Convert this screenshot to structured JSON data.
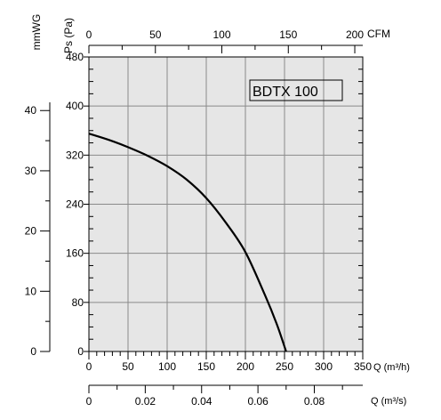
{
  "chart_data": {
    "type": "line",
    "title": "BDTX 100",
    "x_primary": {
      "label": "Q (m³/h)",
      "range": [
        0,
        350
      ],
      "ticks": [
        "0",
        "50",
        "100",
        "150",
        "200",
        "250",
        "300",
        "350"
      ]
    },
    "x_top": {
      "label": "CFM",
      "range": [
        0,
        206
      ],
      "ticks": [
        "0",
        "50",
        "100",
        "150",
        "200"
      ]
    },
    "x_bottom": {
      "label": "Q (m³/s)",
      "range": [
        0,
        0.0972
      ],
      "ticks": [
        "0",
        "0.02",
        "0.04",
        "0.06",
        "0.08"
      ]
    },
    "y_primary": {
      "label": "Ps (Pa)",
      "range": [
        0,
        480
      ],
      "ticks": [
        "0",
        "80",
        "160",
        "240",
        "320",
        "400",
        "480"
      ]
    },
    "y_secondary": {
      "label": "mmWG",
      "range": [
        0,
        48.9
      ],
      "ticks": [
        "0",
        "10",
        "20",
        "30",
        "40"
      ]
    },
    "grid": true,
    "series": [
      {
        "x": [
          0,
          25,
          50,
          75,
          100,
          125,
          150,
          175,
          200,
          225,
          240,
          252
        ],
        "y": [
          355,
          345,
          333,
          319,
          302,
          280,
          250,
          210,
          162,
          92,
          45,
          0
        ]
      }
    ]
  }
}
